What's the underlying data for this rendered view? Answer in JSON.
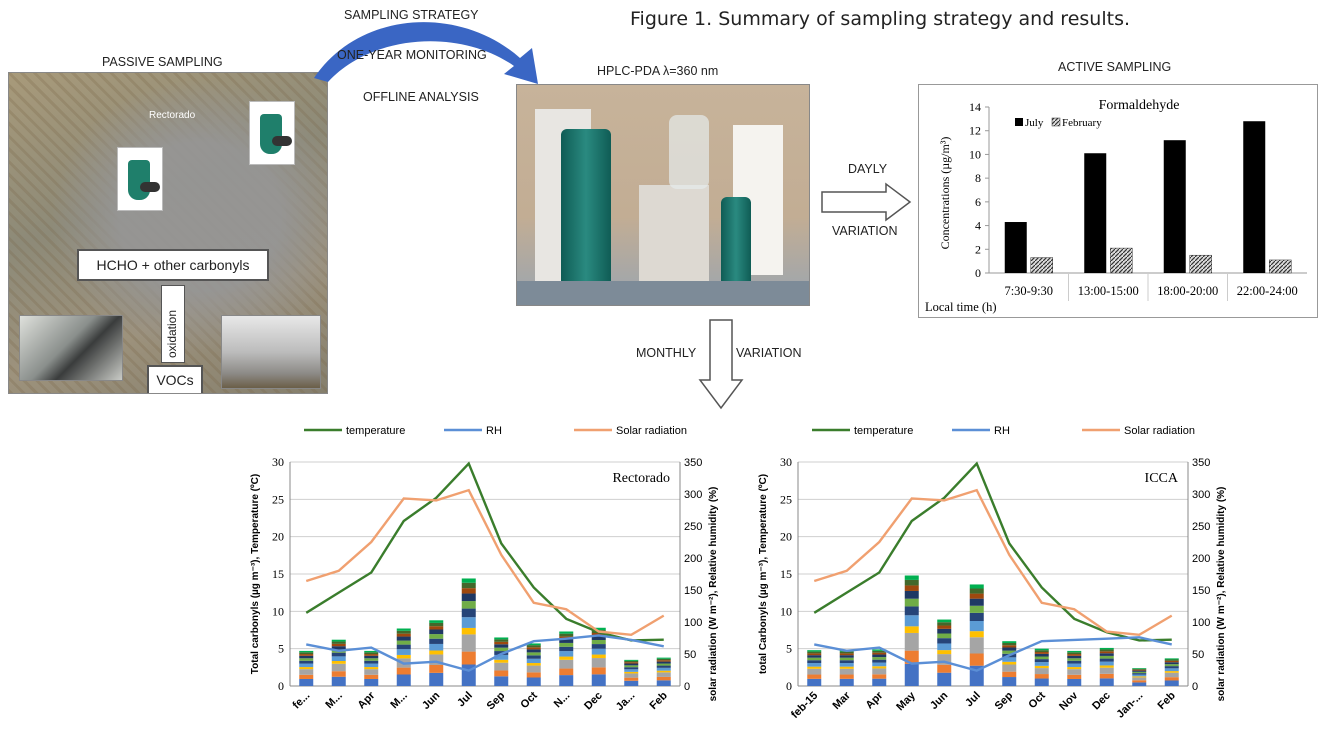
{
  "figure": {
    "title": "Figure 1. Summary of sampling strategy and results.",
    "passive_label": "PASSIVE SAMPLING",
    "strategy_lines": [
      "SAMPLING STRATEGY",
      "ONE-YEAR MONITORING",
      "OFFLINE ANALYSIS"
    ],
    "hplc_label": "HPLC-PDA λ=360 nm",
    "active_label": "ACTIVE SAMPLING",
    "daily_arrow": [
      "DAYLY",
      "VARIATION"
    ],
    "monthly_arrow": [
      "MONTHLY",
      "VARIATION"
    ],
    "aerial": {
      "hcho_box": "HCHO + other carbonyls",
      "oxidation": "oxidation",
      "vocs_box": "VOCs",
      "site_label": "Rectorado"
    }
  },
  "colors": {
    "arrow_blue": "#3a66c4",
    "july": "#000000",
    "february": "#777777",
    "temperature": "#3a7d2c",
    "rh": "#5b8fd6",
    "solar": "#f0a070"
  },
  "chart_data": [
    {
      "type": "bar",
      "title": "Formaldehyde",
      "categories": [
        "7:30-9:30",
        "13:00-15:00",
        "18:00-20:00",
        "22:00-24:00"
      ],
      "series": [
        {
          "name": "July",
          "values": [
            4.3,
            10.1,
            11.2,
            12.8
          ]
        },
        {
          "name": "February",
          "values": [
            1.3,
            2.1,
            1.5,
            1.1
          ]
        }
      ],
      "xlabel": "Local time (h)",
      "ylabel": "Concentrations (µg/m³)",
      "ylim": [
        0,
        14
      ],
      "yticks": [
        0,
        2,
        4,
        6,
        8,
        10,
        12,
        14
      ],
      "legend": "top-left"
    },
    {
      "type": "bar+line",
      "title": "Rectorado",
      "categories": [
        "fe...",
        "M...",
        "Apr",
        "M...",
        "Jun",
        "Jul",
        "Sep",
        "Oct",
        "N...",
        "Dec",
        "Ja...",
        "Feb"
      ],
      "stack_totals": [
        4.7,
        6.2,
        4.7,
        7.7,
        8.8,
        14.4,
        6.5,
        5.7,
        7.3,
        7.8,
        3.5,
        3.8
      ],
      "series": [
        {
          "name": "temperature",
          "axis": "left",
          "values": [
            9.8,
            12.5,
            15.2,
            22.1,
            25.2,
            29.8,
            19.1,
            13.2,
            9.0,
            7.2,
            6.1,
            6.2
          ]
        },
        {
          "name": "RH",
          "axis": "right",
          "values": [
            65,
            55,
            60,
            35,
            38,
            24,
            50,
            70,
            74,
            79,
            72,
            62
          ]
        },
        {
          "name": "Solar radiation",
          "axis": "right",
          "values": [
            164,
            180,
            225,
            293,
            290,
            306,
            205,
            130,
            120,
            85,
            80,
            110
          ]
        }
      ],
      "ylabel": "Total carbonyls (µg m⁻³), Temperature (ºC)",
      "y2label": "solar radiation (W m⁻²), Relative humidity (%)",
      "ylim": [
        0,
        30
      ],
      "y2lim": [
        0,
        350
      ],
      "yticks": [
        0,
        5,
        10,
        15,
        20,
        25,
        30
      ],
      "y2ticks": [
        0,
        50,
        100,
        150,
        200,
        250,
        300,
        350
      ],
      "legend": "top"
    },
    {
      "type": "bar+line",
      "title": "ICCA",
      "categories": [
        "feb-15",
        "Mar",
        "Apr",
        "May",
        "Jun",
        "Jul",
        "Sep",
        "Oct",
        "Nov",
        "Dec",
        "Jan-...",
        "Feb"
      ],
      "stack_totals": [
        4.8,
        4.8,
        4.9,
        14.8,
        8.9,
        13.6,
        6.0,
        5.0,
        4.7,
        5.1,
        2.4,
        3.7
      ],
      "series": [
        {
          "name": "temperature",
          "axis": "left",
          "values": [
            9.8,
            12.5,
            15.2,
            22.1,
            25.2,
            29.8,
            19.1,
            13.2,
            9.0,
            7.2,
            6.1,
            6.2
          ]
        },
        {
          "name": "RH",
          "axis": "right",
          "values": [
            65,
            55,
            60,
            35,
            38,
            24,
            48,
            70,
            72,
            74,
            76,
            65
          ]
        },
        {
          "name": "Solar radiation",
          "axis": "right",
          "values": [
            164,
            180,
            225,
            293,
            290,
            306,
            205,
            130,
            120,
            85,
            80,
            110
          ]
        }
      ],
      "ylabel": "total Carbonyls (µg m⁻³), Temperature (ºC)",
      "y2label": "solar radiation (W m⁻²), Relative humidity (%)",
      "ylim": [
        0,
        30
      ],
      "y2lim": [
        0,
        350
      ],
      "yticks": [
        0,
        5,
        10,
        15,
        20,
        25,
        30
      ],
      "y2ticks": [
        0,
        50,
        100,
        150,
        200,
        250,
        300,
        350
      ],
      "legend": "top"
    }
  ]
}
